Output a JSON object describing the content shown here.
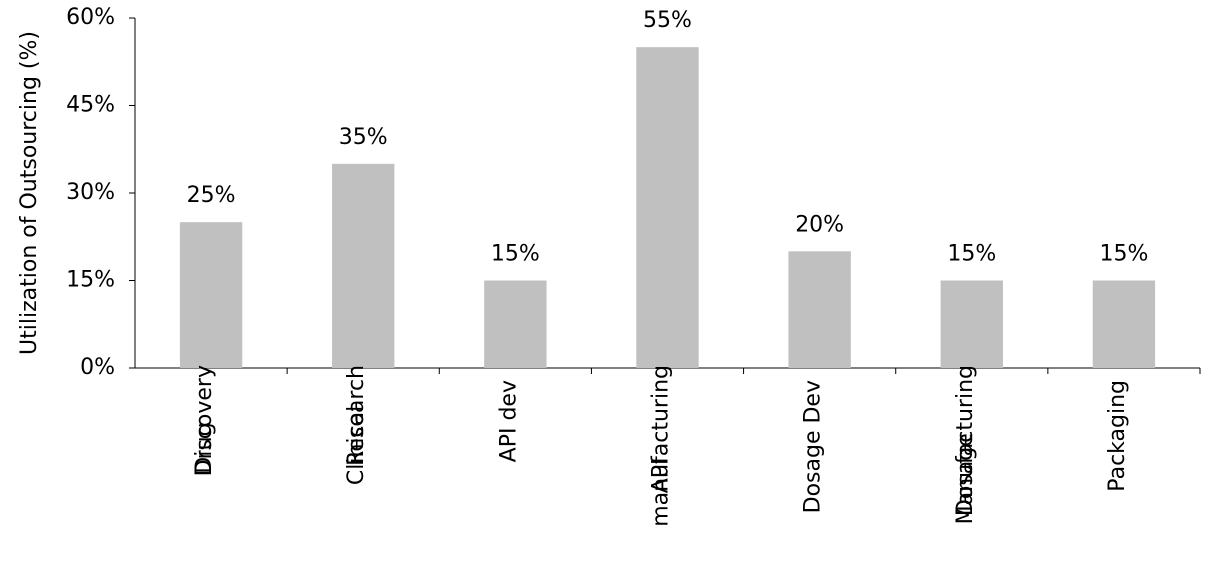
{
  "chart_data": {
    "type": "bar",
    "y_label": "Utilization of Outsourcing (%)",
    "categories": [
      "Drug\nDiscovery",
      "Clinical\nResearch",
      "API dev",
      "API\nmanufacturing",
      "Dosage Dev",
      "Dosage\nManufacturing",
      "Packaging"
    ],
    "values": [
      25,
      35,
      15,
      55,
      20,
      15,
      15
    ],
    "value_labels": [
      "25%",
      "35%",
      "15%",
      "55%",
      "20%",
      "15%",
      "15%"
    ],
    "color": "#c0c0c0",
    "ylim": [
      0,
      60
    ],
    "yticks": [
      {
        "value": 0,
        "label": "0%"
      },
      {
        "value": 15,
        "label": "15%"
      },
      {
        "value": 30,
        "label": "30%"
      },
      {
        "value": 45,
        "label": "45%"
      },
      {
        "value": 60,
        "label": "60%"
      }
    ],
    "grid": false
  }
}
